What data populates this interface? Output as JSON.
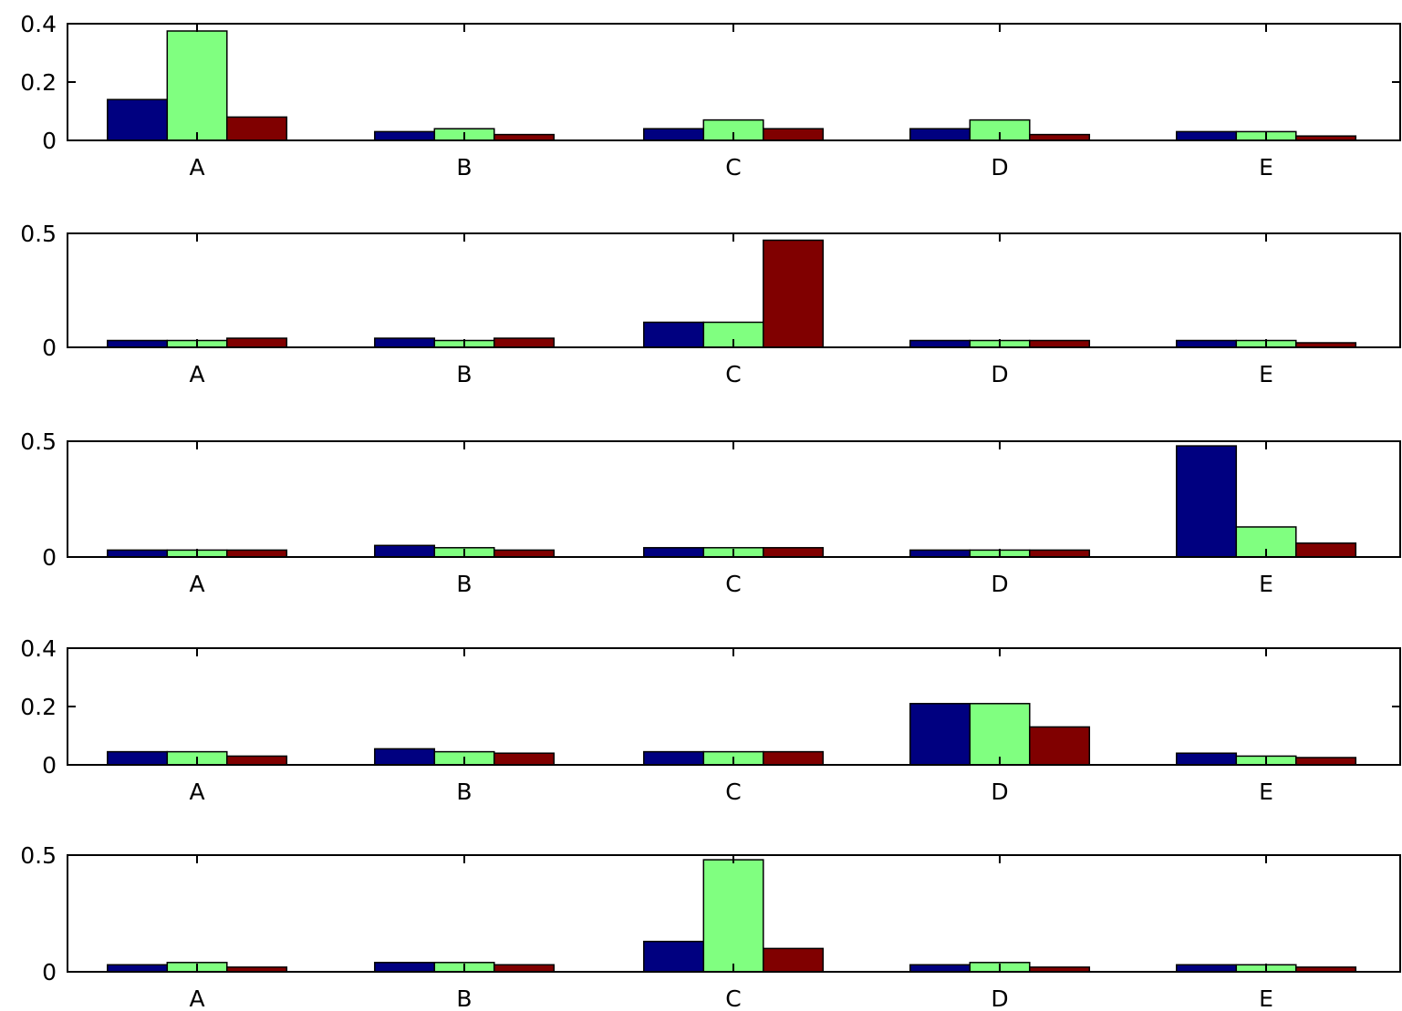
{
  "chart_data": [
    {
      "type": "bar",
      "categories": [
        "A",
        "B",
        "C",
        "D",
        "E"
      ],
      "ylim": [
        0,
        0.4
      ],
      "yticks": [
        0,
        0.2,
        0.4
      ],
      "ytick_labels": [
        "0",
        "0.2",
        "0.4"
      ],
      "series": [
        {
          "color": "#000080",
          "values": [
            0.14,
            0.03,
            0.04,
            0.04,
            0.03
          ]
        },
        {
          "color": "#80ff80",
          "values": [
            0.375,
            0.04,
            0.07,
            0.07,
            0.03
          ]
        },
        {
          "color": "#800000",
          "values": [
            0.08,
            0.02,
            0.04,
            0.02,
            0.015
          ]
        }
      ]
    },
    {
      "type": "bar",
      "categories": [
        "A",
        "B",
        "C",
        "D",
        "E"
      ],
      "ylim": [
        0,
        0.5
      ],
      "yticks": [
        0,
        0.5
      ],
      "ytick_labels": [
        "0",
        "0.5"
      ],
      "series": [
        {
          "color": "#000080",
          "values": [
            0.03,
            0.04,
            0.11,
            0.03,
            0.03
          ]
        },
        {
          "color": "#80ff80",
          "values": [
            0.03,
            0.03,
            0.11,
            0.03,
            0.03
          ]
        },
        {
          "color": "#800000",
          "values": [
            0.04,
            0.04,
            0.47,
            0.03,
            0.02
          ]
        }
      ]
    },
    {
      "type": "bar",
      "categories": [
        "A",
        "B",
        "C",
        "D",
        "E"
      ],
      "ylim": [
        0,
        0.5
      ],
      "yticks": [
        0,
        0.5
      ],
      "ytick_labels": [
        "0",
        "0.5"
      ],
      "series": [
        {
          "color": "#000080",
          "values": [
            0.03,
            0.05,
            0.04,
            0.03,
            0.48
          ]
        },
        {
          "color": "#80ff80",
          "values": [
            0.03,
            0.04,
            0.04,
            0.03,
            0.13
          ]
        },
        {
          "color": "#800000",
          "values": [
            0.03,
            0.03,
            0.04,
            0.03,
            0.06
          ]
        }
      ]
    },
    {
      "type": "bar",
      "categories": [
        "A",
        "B",
        "C",
        "D",
        "E"
      ],
      "ylim": [
        0,
        0.4
      ],
      "yticks": [
        0,
        0.2,
        0.4
      ],
      "ytick_labels": [
        "0",
        "0.2",
        "0.4"
      ],
      "series": [
        {
          "color": "#000080",
          "values": [
            0.045,
            0.055,
            0.045,
            0.21,
            0.04
          ]
        },
        {
          "color": "#80ff80",
          "values": [
            0.045,
            0.045,
            0.045,
            0.21,
            0.03
          ]
        },
        {
          "color": "#800000",
          "values": [
            0.03,
            0.04,
            0.045,
            0.13,
            0.025
          ]
        }
      ]
    },
    {
      "type": "bar",
      "categories": [
        "A",
        "B",
        "C",
        "D",
        "E"
      ],
      "ylim": [
        0,
        0.5
      ],
      "yticks": [
        0,
        0.5
      ],
      "ytick_labels": [
        "0",
        "0.5"
      ],
      "series": [
        {
          "color": "#000080",
          "values": [
            0.03,
            0.04,
            0.13,
            0.03,
            0.03
          ]
        },
        {
          "color": "#80ff80",
          "values": [
            0.04,
            0.04,
            0.48,
            0.04,
            0.03
          ]
        },
        {
          "color": "#800000",
          "values": [
            0.02,
            0.03,
            0.1,
            0.02,
            0.02
          ]
        }
      ]
    }
  ]
}
